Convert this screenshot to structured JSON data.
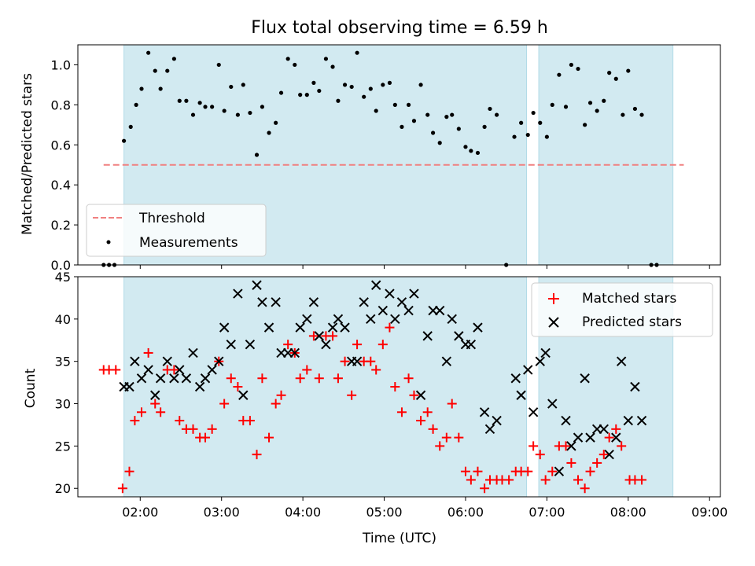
{
  "figure": {
    "title": "Flux total observing time = 6.59 h",
    "xlabel": "Time (UTC)",
    "x_tick_labels": [
      "02:00",
      "03:00",
      "04:00",
      "05:00",
      "06:00",
      "07:00",
      "08:00",
      "09:00"
    ]
  },
  "colors": {
    "span": "#add8e6",
    "threshold": "#f08080",
    "matched": "#ff0000",
    "predicted": "#000000",
    "measurement": "#000000"
  },
  "chart_data": [
    {
      "type": "scatter",
      "panel": "top",
      "title": "Flux total observing time = 6.59 h",
      "ylabel": "Matched/Predicted stars",
      "xlim": [
        "01:14",
        "09:08"
      ],
      "ylim": [
        0,
        1.1
      ],
      "y_ticks": [
        "0.0",
        "0.2",
        "0.4",
        "0.6",
        "0.8",
        "1.0"
      ],
      "legend_position": "lower-left",
      "legend": [
        "Threshold",
        "Measurements"
      ],
      "shaded_spans": [
        [
          "01:48",
          "06:45"
        ],
        [
          "06:54",
          "08:33"
        ]
      ],
      "threshold": {
        "name": "Threshold",
        "y": 0.5,
        "x_range": [
          "01:33",
          "08:41"
        ],
        "style": "dashed"
      },
      "series": [
        {
          "name": "Measurements",
          "points": [
            [
              "01:33",
              0
            ],
            [
              "01:37",
              0
            ],
            [
              "01:41",
              0
            ],
            [
              "01:48",
              0.62
            ],
            [
              "01:53",
              0.69
            ],
            [
              "01:57",
              0.8
            ],
            [
              "02:01",
              0.88
            ],
            [
              "02:06",
              1.06
            ],
            [
              "02:11",
              0.97
            ],
            [
              "02:15",
              0.88
            ],
            [
              "02:20",
              0.97
            ],
            [
              "02:25",
              1.03
            ],
            [
              "02:29",
              0.82
            ],
            [
              "02:34",
              0.82
            ],
            [
              "02:39",
              0.75
            ],
            [
              "02:44",
              0.81
            ],
            [
              "02:48",
              0.79
            ],
            [
              "02:53",
              0.79
            ],
            [
              "02:58",
              1.0
            ],
            [
              "03:02",
              0.77
            ],
            [
              "03:07",
              0.89
            ],
            [
              "03:12",
              0.75
            ],
            [
              "03:16",
              0.9
            ],
            [
              "03:21",
              0.76
            ],
            [
              "03:26",
              0.55
            ],
            [
              "03:30",
              0.79
            ],
            [
              "03:35",
              0.66
            ],
            [
              "03:40",
              0.71
            ],
            [
              "03:44",
              0.86
            ],
            [
              "03:49",
              1.03
            ],
            [
              "03:54",
              1.0
            ],
            [
              "03:58",
              0.85
            ],
            [
              "04:03",
              0.85
            ],
            [
              "04:08",
              0.91
            ],
            [
              "04:12",
              0.87
            ],
            [
              "04:17",
              1.03
            ],
            [
              "04:22",
              0.99
            ],
            [
              "04:26",
              0.82
            ],
            [
              "04:31",
              0.9
            ],
            [
              "04:36",
              0.89
            ],
            [
              "04:40",
              1.06
            ],
            [
              "04:45",
              0.84
            ],
            [
              "04:50",
              0.88
            ],
            [
              "04:54",
              0.77
            ],
            [
              "04:59",
              0.9
            ],
            [
              "05:04",
              0.91
            ],
            [
              "05:08",
              0.8
            ],
            [
              "05:13",
              0.69
            ],
            [
              "05:18",
              0.8
            ],
            [
              "05:22",
              0.72
            ],
            [
              "05:27",
              0.9
            ],
            [
              "05:32",
              0.75
            ],
            [
              "05:36",
              0.66
            ],
            [
              "05:41",
              0.61
            ],
            [
              "05:46",
              0.74
            ],
            [
              "05:50",
              0.75
            ],
            [
              "05:55",
              0.68
            ],
            [
              "06:00",
              0.59
            ],
            [
              "06:04",
              0.57
            ],
            [
              "06:09",
              0.56
            ],
            [
              "06:14",
              0.69
            ],
            [
              "06:18",
              0.78
            ],
            [
              "06:23",
              0.75
            ],
            [
              "06:30",
              0
            ],
            [
              "06:36",
              0.64
            ],
            [
              "06:41",
              0.71
            ],
            [
              "06:46",
              0.65
            ],
            [
              "06:50",
              0.76
            ],
            [
              "06:55",
              0.71
            ],
            [
              "07:00",
              0.64
            ],
            [
              "07:04",
              0.8
            ],
            [
              "07:09",
              0.95
            ],
            [
              "07:14",
              0.79
            ],
            [
              "07:18",
              1.0
            ],
            [
              "07:23",
              0.98
            ],
            [
              "07:28",
              0.7
            ],
            [
              "07:32",
              0.81
            ],
            [
              "07:37",
              0.77
            ],
            [
              "07:42",
              0.82
            ],
            [
              "07:46",
              0.96
            ],
            [
              "07:51",
              0.93
            ],
            [
              "07:56",
              0.75
            ],
            [
              "08:00",
              0.97
            ],
            [
              "08:05",
              0.78
            ],
            [
              "08:10",
              0.75
            ],
            [
              "08:17",
              0
            ],
            [
              "08:21",
              0
            ]
          ]
        }
      ]
    },
    {
      "type": "scatter",
      "panel": "bottom",
      "xlabel": "Time (UTC)",
      "ylabel": "Count",
      "xlim": [
        "01:14",
        "09:08"
      ],
      "ylim": [
        19,
        45
      ],
      "y_ticks": [
        "20",
        "25",
        "30",
        "35",
        "40",
        "45"
      ],
      "legend_position": "upper-right",
      "legend": [
        "Matched stars",
        "Predicted stars"
      ],
      "shaded_spans": [
        [
          "01:48",
          "06:45"
        ],
        [
          "06:54",
          "08:33"
        ]
      ],
      "series": [
        {
          "name": "Matched stars",
          "points": [
            [
              "01:33",
              34
            ],
            [
              "01:37",
              34
            ],
            [
              "01:42",
              34
            ],
            [
              "01:47",
              20
            ],
            [
              "01:52",
              22
            ],
            [
              "01:56",
              28
            ],
            [
              "02:01",
              29
            ],
            [
              "02:06",
              36
            ],
            [
              "02:11",
              30
            ],
            [
              "02:15",
              29
            ],
            [
              "02:20",
              34
            ],
            [
              "02:25",
              34
            ],
            [
              "02:29",
              28
            ],
            [
              "02:34",
              27
            ],
            [
              "02:39",
              27
            ],
            [
              "02:44",
              26
            ],
            [
              "02:48",
              26
            ],
            [
              "02:53",
              27
            ],
            [
              "02:58",
              35
            ],
            [
              "03:02",
              30
            ],
            [
              "03:07",
              33
            ],
            [
              "03:12",
              32
            ],
            [
              "03:16",
              28
            ],
            [
              "03:21",
              28
            ],
            [
              "03:26",
              24
            ],
            [
              "03:30",
              33
            ],
            [
              "03:35",
              26
            ],
            [
              "03:40",
              30
            ],
            [
              "03:44",
              31
            ],
            [
              "03:49",
              37
            ],
            [
              "03:54",
              36
            ],
            [
              "03:58",
              33
            ],
            [
              "04:03",
              34
            ],
            [
              "04:08",
              38
            ],
            [
              "04:12",
              33
            ],
            [
              "04:17",
              38
            ],
            [
              "04:22",
              38
            ],
            [
              "04:26",
              33
            ],
            [
              "04:31",
              35
            ],
            [
              "04:36",
              31
            ],
            [
              "04:40",
              37
            ],
            [
              "04:45",
              35
            ],
            [
              "04:50",
              35
            ],
            [
              "04:54",
              34
            ],
            [
              "04:59",
              37
            ],
            [
              "05:04",
              39
            ],
            [
              "05:08",
              32
            ],
            [
              "05:13",
              29
            ],
            [
              "05:18",
              33
            ],
            [
              "05:22",
              31
            ],
            [
              "05:27",
              28
            ],
            [
              "05:32",
              29
            ],
            [
              "05:36",
              27
            ],
            [
              "05:41",
              25
            ],
            [
              "05:46",
              26
            ],
            [
              "05:50",
              30
            ],
            [
              "05:55",
              26
            ],
            [
              "06:00",
              22
            ],
            [
              "06:04",
              21
            ],
            [
              "06:09",
              22
            ],
            [
              "06:14",
              20
            ],
            [
              "06:18",
              21
            ],
            [
              "06:23",
              21
            ],
            [
              "06:27",
              21
            ],
            [
              "06:32",
              21
            ],
            [
              "06:37",
              22
            ],
            [
              "06:41",
              22
            ],
            [
              "06:46",
              22
            ],
            [
              "06:50",
              25
            ],
            [
              "06:55",
              24
            ],
            [
              "06:59",
              21
            ],
            [
              "07:04",
              22
            ],
            [
              "07:09",
              25
            ],
            [
              "07:14",
              25
            ],
            [
              "07:18",
              23
            ],
            [
              "07:23",
              21
            ],
            [
              "07:28",
              20
            ],
            [
              "07:32",
              22
            ],
            [
              "07:37",
              23
            ],
            [
              "07:42",
              24
            ],
            [
              "07:46",
              26
            ],
            [
              "07:51",
              27
            ],
            [
              "07:55",
              25
            ],
            [
              "08:01",
              21
            ],
            [
              "08:05",
              21
            ],
            [
              "08:10",
              21
            ]
          ]
        },
        {
          "name": "Predicted stars",
          "points": [
            [
              "01:48",
              32
            ],
            [
              "01:52",
              32
            ],
            [
              "01:56",
              35
            ],
            [
              "02:01",
              33
            ],
            [
              "02:06",
              34
            ],
            [
              "02:11",
              31
            ],
            [
              "02:15",
              33
            ],
            [
              "02:20",
              35
            ],
            [
              "02:25",
              33
            ],
            [
              "02:29",
              34
            ],
            [
              "02:34",
              33
            ],
            [
              "02:39",
              36
            ],
            [
              "02:44",
              32
            ],
            [
              "02:48",
              33
            ],
            [
              "02:53",
              34
            ],
            [
              "02:58",
              35
            ],
            [
              "03:02",
              39
            ],
            [
              "03:07",
              37
            ],
            [
              "03:12",
              43
            ],
            [
              "03:16",
              31
            ],
            [
              "03:21",
              37
            ],
            [
              "03:26",
              44
            ],
            [
              "03:30",
              42
            ],
            [
              "03:35",
              39
            ],
            [
              "03:40",
              42
            ],
            [
              "03:44",
              36
            ],
            [
              "03:49",
              36
            ],
            [
              "03:54",
              36
            ],
            [
              "03:58",
              39
            ],
            [
              "04:03",
              40
            ],
            [
              "04:08",
              42
            ],
            [
              "04:12",
              38
            ],
            [
              "04:17",
              37
            ],
            [
              "04:22",
              39
            ],
            [
              "04:26",
              40
            ],
            [
              "04:31",
              39
            ],
            [
              "04:36",
              35
            ],
            [
              "04:40",
              35
            ],
            [
              "04:45",
              42
            ],
            [
              "04:50",
              40
            ],
            [
              "04:54",
              44
            ],
            [
              "04:59",
              41
            ],
            [
              "05:04",
              43
            ],
            [
              "05:08",
              40
            ],
            [
              "05:13",
              42
            ],
            [
              "05:18",
              41
            ],
            [
              "05:22",
              43
            ],
            [
              "05:27",
              31
            ],
            [
              "05:32",
              38
            ],
            [
              "05:36",
              41
            ],
            [
              "05:41",
              41
            ],
            [
              "05:46",
              35
            ],
            [
              "05:50",
              40
            ],
            [
              "05:55",
              38
            ],
            [
              "06:00",
              37
            ],
            [
              "06:04",
              37
            ],
            [
              "06:09",
              39
            ],
            [
              "06:14",
              29
            ],
            [
              "06:18",
              27
            ],
            [
              "06:23",
              28
            ],
            [
              "06:37",
              33
            ],
            [
              "06:41",
              31
            ],
            [
              "06:46",
              34
            ],
            [
              "06:50",
              29
            ],
            [
              "06:55",
              35
            ],
            [
              "06:59",
              36
            ],
            [
              "07:04",
              30
            ],
            [
              "07:09",
              22
            ],
            [
              "07:14",
              28
            ],
            [
              "07:18",
              25
            ],
            [
              "07:23",
              26
            ],
            [
              "07:28",
              33
            ],
            [
              "07:32",
              26
            ],
            [
              "07:37",
              27
            ],
            [
              "07:42",
              27
            ],
            [
              "07:46",
              24
            ],
            [
              "07:51",
              26
            ],
            [
              "07:55",
              35
            ],
            [
              "08:00",
              28
            ],
            [
              "08:05",
              32
            ],
            [
              "08:10",
              28
            ]
          ]
        }
      ]
    }
  ]
}
